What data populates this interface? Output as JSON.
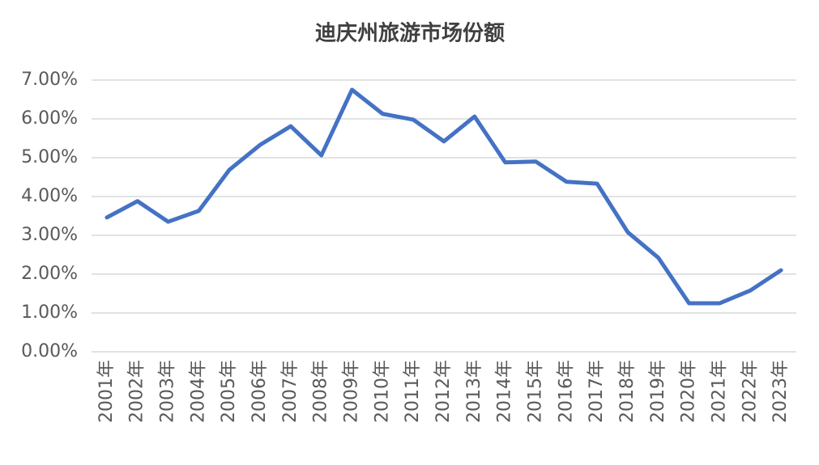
{
  "chart_data": {
    "type": "line",
    "title": "迪庆州旅游市场份额",
    "categories": [
      "2001年",
      "2002年",
      "2003年",
      "2004年",
      "2005年",
      "2006年",
      "2007年",
      "2008年",
      "2009年",
      "2010年",
      "2011年",
      "2012年",
      "2013年",
      "2014年",
      "2015年",
      "2016年",
      "2017年",
      "2018年",
      "2019年",
      "2020年",
      "2021年",
      "2022年",
      "2023年"
    ],
    "series": [
      {
        "color": "#4472c4",
        "values": [
          3.46,
          3.88,
          3.35,
          3.63,
          4.69,
          5.33,
          5.81,
          5.06,
          6.75,
          6.13,
          5.98,
          5.42,
          6.06,
          4.88,
          4.9,
          4.38,
          4.33,
          3.08,
          2.42,
          1.25,
          1.25,
          1.58,
          2.1
        ]
      }
    ],
    "ylim": [
      0,
      7
    ],
    "yticks": [
      {
        "value": 0,
        "label": "0.00%"
      },
      {
        "value": 1,
        "label": "1.00%"
      },
      {
        "value": 2,
        "label": "2.00%"
      },
      {
        "value": 3,
        "label": "3.00%"
      },
      {
        "value": 4,
        "label": "4.00%"
      },
      {
        "value": 5,
        "label": "5.00%"
      },
      {
        "value": 6,
        "label": "6.00%"
      },
      {
        "value": 7,
        "label": "7.00%"
      }
    ],
    "grid": true
  }
}
